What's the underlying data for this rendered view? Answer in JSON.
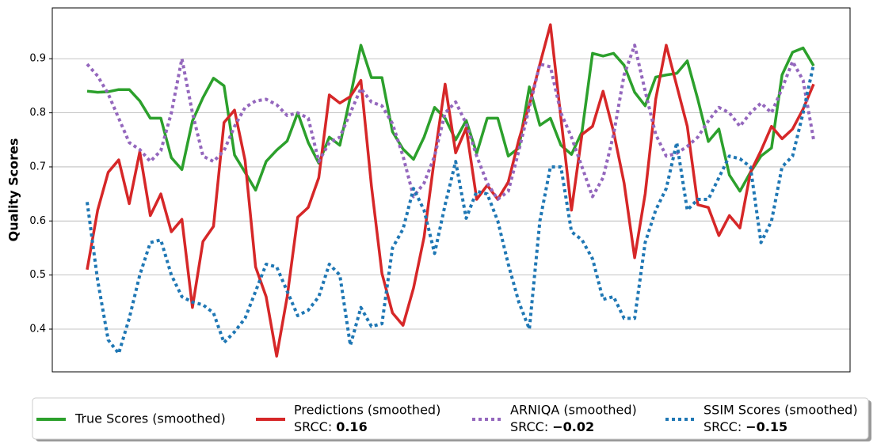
{
  "chart_data": {
    "type": "line",
    "ylabel": "Quality Scores",
    "srcc_prefix": "SRCC:",
    "x": [
      0,
      1,
      2,
      3,
      4,
      5,
      6,
      7,
      8,
      9,
      10,
      11,
      12,
      13,
      14,
      15,
      16,
      17,
      18,
      19,
      20,
      21,
      22,
      23,
      24,
      25,
      26,
      27,
      28,
      29,
      30,
      31,
      32,
      33,
      34,
      35,
      36,
      37,
      38,
      39,
      40,
      41,
      42,
      43,
      44,
      45,
      46,
      47,
      48,
      49,
      50,
      51,
      52,
      53,
      54,
      55,
      56,
      57,
      58,
      59,
      60,
      61,
      62,
      63,
      64,
      65,
      66,
      67,
      68,
      69
    ],
    "xlim": [
      -3.31,
      72.46
    ],
    "ylim": [
      0.321,
      0.994
    ],
    "yticks": [
      0.4,
      0.5,
      0.6,
      0.7,
      0.8,
      0.9
    ],
    "grid": true,
    "legend": "lower center",
    "series": [
      {
        "name": "True Scores (smoothed)",
        "color": "#2ca02c",
        "style": "solid",
        "values": [
          0.84,
          0.838,
          0.839,
          0.843,
          0.843,
          0.822,
          0.79,
          0.79,
          0.717,
          0.695,
          0.785,
          0.828,
          0.864,
          0.85,
          0.722,
          0.69,
          0.657,
          0.71,
          0.731,
          0.748,
          0.8,
          0.745,
          0.707,
          0.755,
          0.74,
          0.83,
          0.925,
          0.865,
          0.865,
          0.765,
          0.733,
          0.714,
          0.755,
          0.81,
          0.79,
          0.75,
          0.786,
          0.725,
          0.79,
          0.79,
          0.72,
          0.735,
          0.848,
          0.777,
          0.79,
          0.74,
          0.723,
          0.765,
          0.91,
          0.905,
          0.91,
          0.888,
          0.838,
          0.813,
          0.866,
          0.87,
          0.873,
          0.896,
          0.825,
          0.747,
          0.77,
          0.685,
          0.655,
          0.69,
          0.72,
          0.735,
          0.87,
          0.912,
          0.92,
          0.887
        ]
      },
      {
        "name": "Predictions (smoothed)",
        "color": "#d62728",
        "style": "solid",
        "srcc": 0.16,
        "values": [
          0.51,
          0.62,
          0.69,
          0.713,
          0.632,
          0.728,
          0.61,
          0.65,
          0.58,
          0.603,
          0.44,
          0.562,
          0.59,
          0.782,
          0.805,
          0.712,
          0.515,
          0.46,
          0.35,
          0.46,
          0.607,
          0.625,
          0.68,
          0.833,
          0.818,
          0.83,
          0.86,
          0.665,
          0.503,
          0.43,
          0.407,
          0.476,
          0.57,
          0.718,
          0.853,
          0.726,
          0.772,
          0.64,
          0.666,
          0.64,
          0.672,
          0.75,
          0.815,
          0.89,
          0.963,
          0.79,
          0.62,
          0.76,
          0.775,
          0.84,
          0.765,
          0.67,
          0.532,
          0.65,
          0.825,
          0.925,
          0.85,
          0.775,
          0.63,
          0.625,
          0.573,
          0.61,
          0.587,
          0.69,
          0.73,
          0.775,
          0.752,
          0.77,
          0.807,
          0.853
        ]
      },
      {
        "name": "ARNIQA (smoothed)",
        "color": "#9467bd",
        "style": "dotted",
        "srcc": {
          "value": -0.02,
          "label": "−0.02"
        },
        "values": [
          0.89,
          0.868,
          0.835,
          0.79,
          0.745,
          0.732,
          0.71,
          0.73,
          0.8,
          0.9,
          0.8,
          0.72,
          0.71,
          0.73,
          0.775,
          0.81,
          0.822,
          0.825,
          0.815,
          0.795,
          0.8,
          0.79,
          0.71,
          0.745,
          0.755,
          0.8,
          0.845,
          0.82,
          0.813,
          0.78,
          0.72,
          0.645,
          0.67,
          0.72,
          0.8,
          0.82,
          0.78,
          0.72,
          0.67,
          0.64,
          0.655,
          0.73,
          0.81,
          0.89,
          0.885,
          0.8,
          0.755,
          0.7,
          0.645,
          0.68,
          0.76,
          0.87,
          0.925,
          0.84,
          0.76,
          0.72,
          0.725,
          0.738,
          0.755,
          0.785,
          0.81,
          0.8,
          0.775,
          0.8,
          0.818,
          0.8,
          0.845,
          0.895,
          0.86,
          0.75
        ]
      },
      {
        "name": "SSIM Scores (smoothed)",
        "color": "#1f77b4",
        "style": "dotted",
        "srcc": {
          "value": -0.15,
          "label": "−0.15"
        },
        "values": [
          0.635,
          0.49,
          0.38,
          0.355,
          0.42,
          0.5,
          0.56,
          0.565,
          0.5,
          0.46,
          0.45,
          0.445,
          0.43,
          0.375,
          0.395,
          0.42,
          0.47,
          0.52,
          0.515,
          0.47,
          0.425,
          0.435,
          0.46,
          0.52,
          0.5,
          0.37,
          0.44,
          0.405,
          0.41,
          0.55,
          0.585,
          0.66,
          0.62,
          0.54,
          0.63,
          0.71,
          0.605,
          0.655,
          0.65,
          0.6,
          0.52,
          0.45,
          0.4,
          0.6,
          0.7,
          0.7,
          0.58,
          0.565,
          0.53,
          0.455,
          0.46,
          0.42,
          0.42,
          0.56,
          0.62,
          0.66,
          0.745,
          0.62,
          0.64,
          0.64,
          0.68,
          0.72,
          0.715,
          0.7,
          0.56,
          0.6,
          0.7,
          0.72,
          0.8,
          0.89
        ]
      }
    ]
  }
}
